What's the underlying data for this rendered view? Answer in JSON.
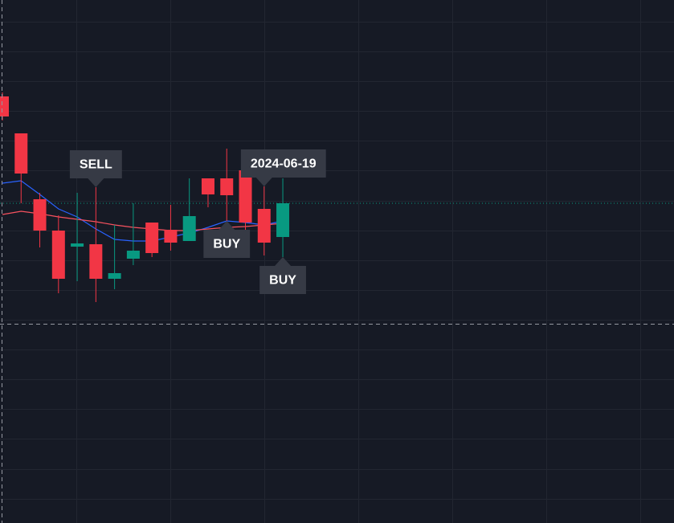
{
  "chart_data": {
    "type": "candlestick",
    "categories": [
      null,
      null,
      null,
      null,
      null,
      null,
      null,
      null,
      null,
      null,
      null,
      null,
      null,
      null,
      "2024-06-19",
      null
    ],
    "open": [
      53.1,
      48.5,
      40.3,
      36.4,
      34.4,
      34.7,
      30.4,
      32.9,
      37.4,
      36.5,
      35.1,
      42.9,
      42.9,
      43.9,
      39.1,
      35.6
    ],
    "high": [
      53.6,
      48.5,
      41.1,
      38.3,
      41.1,
      41.8,
      37.1,
      39.8,
      37.4,
      39.6,
      42.9,
      42.9,
      46.6,
      43.9,
      41.9,
      42.9
    ],
    "low": [
      50.1,
      39.8,
      34.3,
      28.6,
      30.1,
      27.5,
      29.1,
      32.1,
      33.1,
      33.9,
      35.1,
      39.3,
      37.6,
      36.1,
      33.3,
      33.1
    ],
    "close": [
      50.6,
      43.5,
      36.4,
      30.4,
      34.8,
      30.4,
      31.1,
      33.9,
      33.6,
      34.9,
      38.2,
      40.9,
      40.8,
      37.4,
      34.9,
      39.8
    ],
    "up_color": "#089981",
    "down_color": "#f23645",
    "lines": [
      {
        "color": "#2962ff",
        "values": [
          42.3,
          42.6,
          40.9,
          39.1,
          38.1,
          36.6,
          35.3,
          35.1,
          35.1,
          35.6,
          36.1,
          36.8,
          37.6,
          37.4,
          37.1,
          37.6
        ]
      },
      {
        "color": "#f7525f",
        "values": [
          38.4,
          38.8,
          38.5,
          38.1,
          37.8,
          37.5,
          37.1,
          36.8,
          36.6,
          36.4,
          36.4,
          36.6,
          36.8,
          36.9,
          37.1,
          37.3
        ]
      }
    ],
    "signals": [
      null,
      null,
      null,
      null,
      null,
      "SELL",
      null,
      null,
      null,
      null,
      null,
      null,
      "BUY",
      null,
      null,
      "BUY"
    ],
    "ylim": [
      0,
      65.1
    ],
    "grid": true
  }
}
